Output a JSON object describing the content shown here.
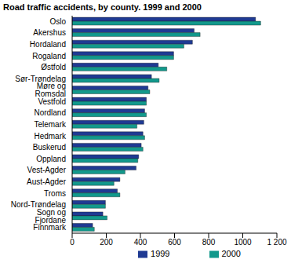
{
  "chart_data": {
    "type": "bar",
    "title": "Road traffic accidents, by county. 1999 and 2000",
    "orientation": "horizontal",
    "categories": [
      "Oslo",
      "Akershus",
      "Hordaland",
      "Rogaland",
      "Østfold",
      "Sør-Trøndelag",
      "Møre og Romsdal",
      "Vestfold",
      "Nordland",
      "Telemark",
      "Hedmark",
      "Buskerud",
      "Oppland",
      "Vest-Agder",
      "Aust-Agder",
      "Troms",
      "Nord-Trøndelag",
      "Sogn og Fjordane",
      "Finnmark"
    ],
    "series": [
      {
        "name": "1999",
        "color": "#1f3a93",
        "values": [
          1075,
          715,
          705,
          595,
          505,
          465,
          445,
          435,
          425,
          420,
          415,
          405,
          390,
          375,
          280,
          265,
          195,
          180,
          120
        ]
      },
      {
        "name": "2000",
        "color": "#12998c",
        "values": [
          1105,
          750,
          655,
          595,
          555,
          510,
          455,
          435,
          435,
          380,
          425,
          415,
          385,
          310,
          245,
          280,
          195,
          205,
          130
        ]
      }
    ],
    "xlim": [
      0,
      1200
    ],
    "xticks": [
      0,
      200,
      400,
      600,
      800,
      1000,
      {
        "value": 1200,
        "label": "1 200"
      }
    ],
    "grid": false,
    "legend": "bottom"
  }
}
